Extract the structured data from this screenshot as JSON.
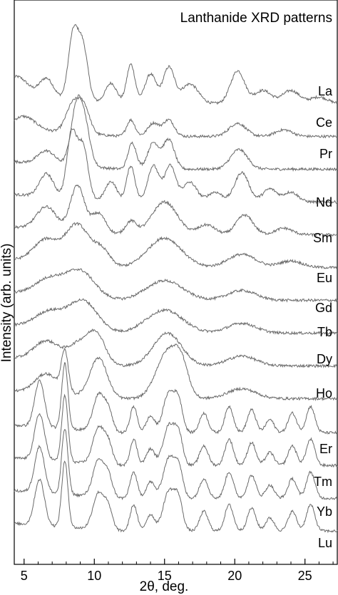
{
  "chart_data": {
    "type": "line",
    "title": "Lanthanide XRD patterns",
    "xlabel": "2θ, deg.",
    "ylabel": "Intensity (arb. units)",
    "xlim": [
      4.3,
      27.3
    ],
    "xticks": [
      5,
      10,
      15,
      20,
      25
    ],
    "xtick_labels": [
      "5",
      "10",
      "15",
      "20",
      "25"
    ],
    "y_ticks_shown": false,
    "grid": false,
    "legend": "none",
    "line_color": "#6a6a6a",
    "note": "Traces are vertically offset; series labels are printed at the right end of each trace.",
    "series": [
      {
        "name": "La",
        "offset": 0,
        "peaks": [
          [
            4.5,
            0.3,
            0.8
          ],
          [
            6.6,
            0.3,
            0.5
          ],
          [
            8.5,
            1.0,
            0.35
          ],
          [
            9.2,
            0.8,
            0.35
          ],
          [
            11.2,
            0.3,
            0.4
          ],
          [
            12.6,
            0.6,
            0.3
          ],
          [
            14.0,
            0.45,
            0.4
          ],
          [
            15.3,
            0.55,
            0.4
          ],
          [
            16.8,
            0.3,
            0.6
          ],
          [
            20.2,
            0.5,
            0.5
          ],
          [
            22.0,
            0.2,
            0.6
          ],
          [
            24.0,
            0.2,
            0.6
          ],
          [
            26.0,
            0.1,
            0.6
          ]
        ],
        "baseline": 0.05
      },
      {
        "name": "Ce",
        "offset": 1,
        "peaks": [
          [
            5.0,
            0.2,
            0.8
          ],
          [
            8.5,
            0.45,
            0.5
          ],
          [
            9.3,
            0.35,
            0.4
          ],
          [
            12.6,
            0.25,
            0.3
          ],
          [
            14.2,
            0.2,
            0.4
          ],
          [
            15.3,
            0.25,
            0.4
          ],
          [
            20.2,
            0.2,
            0.6
          ],
          [
            23.5,
            0.1,
            0.6
          ]
        ],
        "baseline": 0.05
      },
      {
        "name": "Pr",
        "offset": 2,
        "peaks": [
          [
            6.6,
            0.2,
            0.6
          ],
          [
            8.7,
            0.8,
            0.4
          ],
          [
            9.3,
            0.6,
            0.4
          ],
          [
            12.7,
            0.4,
            0.3
          ],
          [
            14.2,
            0.4,
            0.4
          ],
          [
            15.3,
            0.45,
            0.4
          ],
          [
            20.3,
            0.3,
            0.6
          ]
        ],
        "baseline": 0.05
      },
      {
        "name": "Nd",
        "offset": 3,
        "peaks": [
          [
            6.6,
            0.35,
            0.5
          ],
          [
            8.4,
            1.0,
            0.35
          ],
          [
            9.2,
            0.8,
            0.35
          ],
          [
            11.2,
            0.3,
            0.4
          ],
          [
            12.6,
            0.55,
            0.3
          ],
          [
            14.2,
            0.55,
            0.4
          ],
          [
            15.4,
            0.55,
            0.4
          ],
          [
            16.8,
            0.3,
            0.5
          ],
          [
            18.6,
            0.15,
            0.5
          ],
          [
            20.5,
            0.45,
            0.5
          ],
          [
            22.5,
            0.2,
            0.5
          ],
          [
            24.0,
            0.15,
            0.5
          ]
        ],
        "baseline": 0.05
      },
      {
        "name": "Sm",
        "offset": 4,
        "peaks": [
          [
            6.6,
            0.35,
            0.7
          ],
          [
            8.8,
            0.7,
            0.5
          ],
          [
            10.3,
            0.3,
            0.5
          ],
          [
            12.6,
            0.2,
            0.4
          ],
          [
            15.0,
            0.5,
            0.9
          ],
          [
            18.0,
            0.15,
            0.6
          ],
          [
            20.7,
            0.3,
            0.6
          ],
          [
            23.5,
            0.1,
            0.6
          ]
        ],
        "baseline": 0.05
      },
      {
        "name": "Eu",
        "offset": 5,
        "peaks": [
          [
            6.6,
            0.35,
            0.9
          ],
          [
            8.8,
            0.6,
            0.8
          ],
          [
            10.5,
            0.25,
            0.6
          ],
          [
            15.0,
            0.45,
            1.2
          ],
          [
            20.5,
            0.2,
            1.0
          ],
          [
            24.0,
            0.1,
            0.8
          ]
        ],
        "baseline": 0.05
      },
      {
        "name": "Gd",
        "offset": 6,
        "peaks": [
          [
            6.8,
            0.25,
            1.0
          ],
          [
            9.0,
            0.4,
            1.0
          ],
          [
            15.0,
            0.3,
            1.3
          ],
          [
            20.5,
            0.15,
            1.0
          ]
        ],
        "baseline": 0.05
      },
      {
        "name": "Tb",
        "offset": 7,
        "peaks": [
          [
            6.8,
            0.25,
            1.0
          ],
          [
            9.2,
            0.45,
            1.0
          ],
          [
            15.0,
            0.35,
            1.3
          ],
          [
            20.5,
            0.15,
            1.0
          ]
        ],
        "baseline": 0.05
      },
      {
        "name": "Dy",
        "offset": 8,
        "peaks": [
          [
            6.6,
            0.3,
            0.9
          ],
          [
            9.0,
            0.3,
            0.8
          ],
          [
            10.2,
            0.4,
            0.6
          ],
          [
            15.2,
            0.5,
            1.0
          ],
          [
            20.5,
            0.15,
            1.0
          ]
        ],
        "baseline": 0.05
      },
      {
        "name": "Ho",
        "offset": 9,
        "peaks": [
          [
            6.6,
            0.3,
            0.8
          ],
          [
            7.9,
            0.6,
            0.25
          ],
          [
            10.3,
            0.6,
            0.6
          ],
          [
            15.2,
            0.7,
            0.8
          ],
          [
            16.2,
            0.4,
            0.5
          ],
          [
            20.5,
            0.15,
            1.0
          ]
        ],
        "baseline": 0.05
      },
      {
        "name": "Er",
        "offset": 10,
        "peaks": [
          [
            6.1,
            0.7,
            0.35
          ],
          [
            7.9,
            1.0,
            0.22
          ],
          [
            10.3,
            0.55,
            0.4
          ],
          [
            11.0,
            0.3,
            0.3
          ],
          [
            12.8,
            0.4,
            0.25
          ],
          [
            14.0,
            0.25,
            0.3
          ],
          [
            15.3,
            0.6,
            0.4
          ],
          [
            16.0,
            0.45,
            0.3
          ],
          [
            17.8,
            0.3,
            0.3
          ],
          [
            19.6,
            0.4,
            0.3
          ],
          [
            21.2,
            0.35,
            0.3
          ],
          [
            22.5,
            0.2,
            0.3
          ],
          [
            24.1,
            0.3,
            0.3
          ],
          [
            25.4,
            0.4,
            0.3
          ]
        ],
        "baseline": 0.03
      },
      {
        "name": "Tm",
        "offset": 11,
        "peaks": [
          [
            6.1,
            0.7,
            0.35
          ],
          [
            7.9,
            1.0,
            0.22
          ],
          [
            10.3,
            0.55,
            0.4
          ],
          [
            11.0,
            0.3,
            0.3
          ],
          [
            12.8,
            0.4,
            0.25
          ],
          [
            14.0,
            0.25,
            0.3
          ],
          [
            15.3,
            0.6,
            0.4
          ],
          [
            16.0,
            0.45,
            0.3
          ],
          [
            17.8,
            0.3,
            0.3
          ],
          [
            19.6,
            0.4,
            0.3
          ],
          [
            21.2,
            0.35,
            0.3
          ],
          [
            22.5,
            0.2,
            0.3
          ],
          [
            24.1,
            0.3,
            0.3
          ],
          [
            25.4,
            0.4,
            0.3
          ]
        ],
        "baseline": 0.03
      },
      {
        "name": "Yb",
        "offset": 12,
        "peaks": [
          [
            6.1,
            0.7,
            0.35
          ],
          [
            7.9,
            1.0,
            0.22
          ],
          [
            10.3,
            0.55,
            0.4
          ],
          [
            11.0,
            0.3,
            0.3
          ],
          [
            12.8,
            0.4,
            0.25
          ],
          [
            14.0,
            0.25,
            0.3
          ],
          [
            15.3,
            0.6,
            0.4
          ],
          [
            16.0,
            0.45,
            0.3
          ],
          [
            17.8,
            0.3,
            0.3
          ],
          [
            19.6,
            0.4,
            0.3
          ],
          [
            21.2,
            0.35,
            0.3
          ],
          [
            22.5,
            0.2,
            0.3
          ],
          [
            24.1,
            0.3,
            0.3
          ],
          [
            25.4,
            0.4,
            0.3
          ]
        ],
        "baseline": 0.03
      },
      {
        "name": "Lu",
        "offset": 13,
        "peaks": [
          [
            6.1,
            0.7,
            0.35
          ],
          [
            7.9,
            1.0,
            0.22
          ],
          [
            10.3,
            0.55,
            0.4
          ],
          [
            11.0,
            0.3,
            0.3
          ],
          [
            12.8,
            0.4,
            0.25
          ],
          [
            14.0,
            0.25,
            0.3
          ],
          [
            15.3,
            0.6,
            0.4
          ],
          [
            16.0,
            0.45,
            0.3
          ],
          [
            17.8,
            0.3,
            0.3
          ],
          [
            19.6,
            0.4,
            0.3
          ],
          [
            21.2,
            0.35,
            0.3
          ],
          [
            22.5,
            0.2,
            0.3
          ],
          [
            24.1,
            0.3,
            0.3
          ],
          [
            25.4,
            0.4,
            0.3
          ]
        ],
        "baseline": 0.03
      }
    ]
  }
}
